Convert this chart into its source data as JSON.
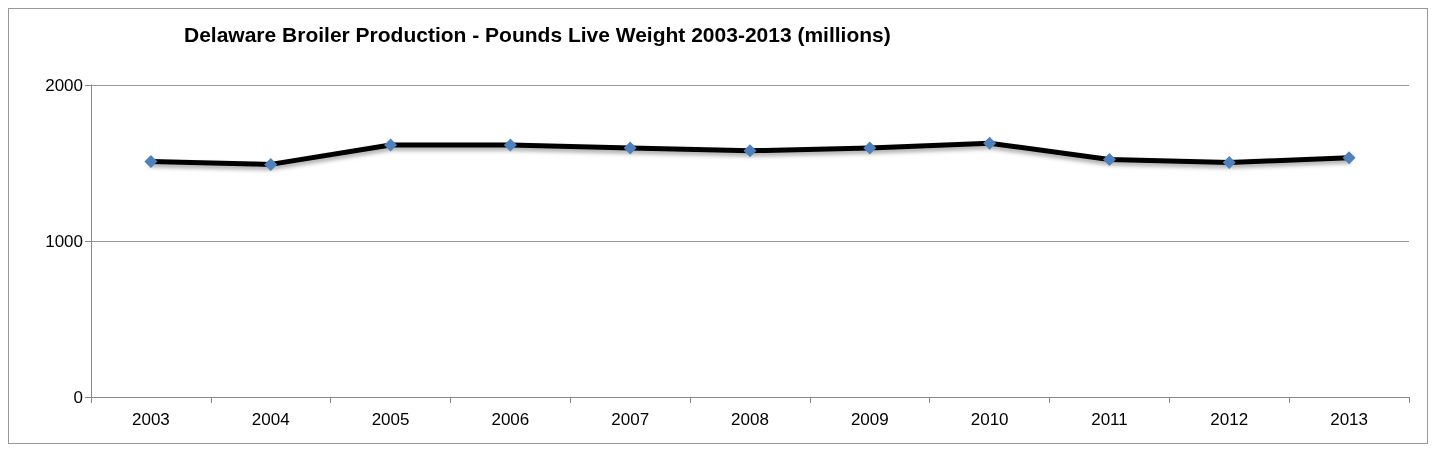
{
  "chart_data": {
    "type": "line",
    "title": "Delaware Broiler Production - Pounds Live Weight 2003-2013 (millions)",
    "categories": [
      "2003",
      "2004",
      "2005",
      "2006",
      "2007",
      "2008",
      "2009",
      "2010",
      "2011",
      "2012",
      "2013"
    ],
    "series": [
      {
        "color": "#4f81bd",
        "values": [
          1509,
          1491,
          1615,
          1615,
          1596,
          1578,
          1596,
          1627,
          1522,
          1503,
          1534
        ]
      }
    ],
    "ylim": [
      0,
      2000
    ],
    "yticks": [
      0,
      1000,
      2000
    ],
    "grid": "y",
    "marker": "diamond",
    "line_style": "solid"
  }
}
